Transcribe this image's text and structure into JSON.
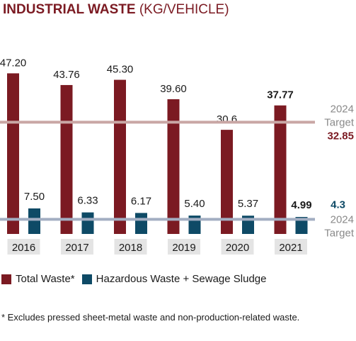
{
  "header": {
    "title_bold": "INDUSTRIAL WASTE",
    "title_unit": "(KG/VEHICLE)"
  },
  "colors": {
    "total": "#7b1a22",
    "hazardous": "#0e4a66",
    "total_target_line": "#c9a7a5",
    "hazardous_target_line": "#a3aec2",
    "year_label_bg": "#e4e4e4",
    "target_gray": "#8a8a8a"
  },
  "chart_data": {
    "type": "bar",
    "categories": [
      "2016",
      "2017",
      "2018",
      "2019",
      "2020",
      "2021"
    ],
    "series": [
      {
        "name": "Total Waste*",
        "values": [
          47.2,
          43.76,
          45.3,
          39.6,
          30.6,
          37.77
        ],
        "labels": [
          "47.20",
          "43.76",
          "45.30",
          "39.60",
          "30.6",
          "37.77"
        ]
      },
      {
        "name": "Hazardous Waste + Sewage Sludge",
        "values": [
          7.5,
          6.33,
          6.17,
          5.4,
          5.37,
          4.99
        ],
        "labels": [
          "7.50",
          "6.33",
          "6.17",
          "5.40",
          "5.37",
          "4.99"
        ]
      }
    ],
    "bold_last_label": true,
    "targets": [
      {
        "series": "Total Waste*",
        "value": 32.85,
        "label_year": "2024",
        "label_word": "Target",
        "label_value": "32.85"
      },
      {
        "series": "Hazardous Waste + Sewage Sludge",
        "value": 4.3,
        "label_year": "2024",
        "label_word": "Target",
        "label_value": "4.3"
      }
    ],
    "ylim": [
      0,
      50
    ],
    "grid": false,
    "legend_position": "bottom-left"
  },
  "legend": {
    "total": "Total Waste*",
    "hazardous": "Hazardous Waste + Sewage Sludge"
  },
  "footnote": "* Excludes pressed sheet-metal waste and non-production-related waste."
}
